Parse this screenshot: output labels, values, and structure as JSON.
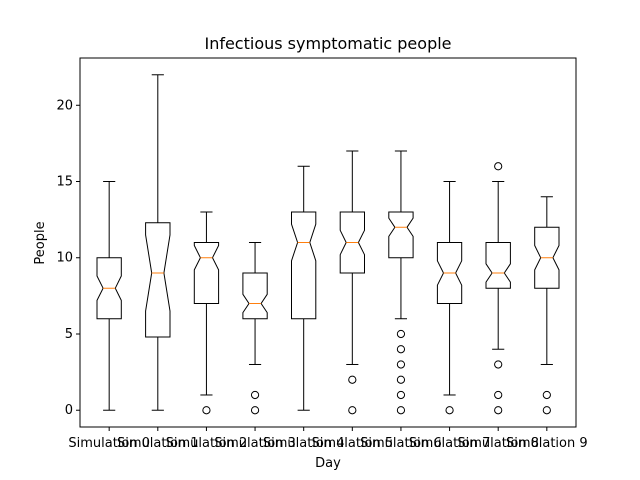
{
  "chart_data": {
    "type": "boxplot",
    "title": "Infectious symptomatic people",
    "xlabel": "Day",
    "ylabel": "People",
    "ylim": [
      -1.1,
      23.1
    ],
    "yticks": [
      0,
      5,
      10,
      15,
      20
    ],
    "notched": true,
    "grid": false,
    "categories": [
      "Simulation 0",
      "Simulation 1",
      "Simulation 2",
      "Simulation 3",
      "Simulation 4",
      "Simulation 5",
      "Simulation 6",
      "Simulation 7",
      "Simulation 8",
      "Simulation 9"
    ],
    "boxes": [
      {
        "whisker_low": 0,
        "q1": 6,
        "median": 8,
        "q3": 10,
        "whisker_high": 15,
        "notch_low": 7.2,
        "notch_high": 8.8,
        "fliers": []
      },
      {
        "whisker_low": 0,
        "q1": 4.8,
        "median": 9,
        "q3": 12.3,
        "whisker_high": 22,
        "notch_low": 6.5,
        "notch_high": 11.5,
        "fliers": []
      },
      {
        "whisker_low": 1,
        "q1": 7,
        "median": 10,
        "q3": 11,
        "whisker_high": 13,
        "notch_low": 9.2,
        "notch_high": 10.8,
        "fliers": [
          0
        ]
      },
      {
        "whisker_low": 3,
        "q1": 6,
        "median": 7,
        "q3": 9,
        "whisker_high": 11,
        "notch_low": 6.4,
        "notch_high": 7.6,
        "fliers": [
          0,
          1
        ]
      },
      {
        "whisker_low": 0,
        "q1": 6,
        "median": 11,
        "q3": 13,
        "whisker_high": 16,
        "notch_low": 9.8,
        "notch_high": 12.2,
        "fliers": []
      },
      {
        "whisker_low": 3,
        "q1": 9,
        "median": 11,
        "q3": 13,
        "whisker_high": 17,
        "notch_low": 10.2,
        "notch_high": 11.8,
        "fliers": [
          0,
          2
        ]
      },
      {
        "whisker_low": 6,
        "q1": 10,
        "median": 12,
        "q3": 13,
        "whisker_high": 17,
        "notch_low": 11.4,
        "notch_high": 12.6,
        "fliers": [
          0,
          1,
          2,
          3,
          4,
          5
        ]
      },
      {
        "whisker_low": 1,
        "q1": 7,
        "median": 9,
        "q3": 11,
        "whisker_high": 15,
        "notch_low": 8.2,
        "notch_high": 9.8,
        "fliers": [
          0
        ]
      },
      {
        "whisker_low": 4,
        "q1": 8,
        "median": 9,
        "q3": 11,
        "whisker_high": 15,
        "notch_low": 8.4,
        "notch_high": 9.6,
        "fliers": [
          0,
          1,
          3,
          16
        ]
      },
      {
        "whisker_low": 3,
        "q1": 8,
        "median": 10,
        "q3": 12,
        "whisker_high": 14,
        "notch_low": 9.2,
        "notch_high": 10.8,
        "fliers": [
          0,
          1
        ]
      }
    ],
    "colors": {
      "box": "#000000",
      "median": "#ff7f0e",
      "flier": "#000000"
    }
  }
}
